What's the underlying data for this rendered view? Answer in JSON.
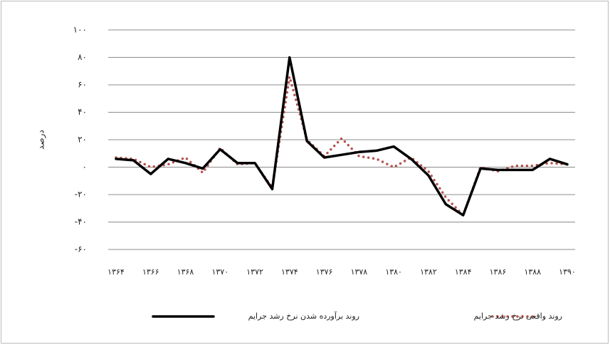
{
  "chart_data": {
    "type": "line",
    "y_label": "درصد",
    "categories": [
      "۱۳۶۴",
      null,
      "۱۳۶۶",
      null,
      "۱۳۶۸",
      null,
      "۱۳۷۰",
      null,
      "۱۳۷۲",
      null,
      "۱۳۷۴",
      null,
      "۱۳۷۶",
      null,
      "۱۳۷۸",
      null,
      "۱۳۸۰",
      null,
      "۱۳۸۲",
      null,
      "۱۳۸۴",
      null,
      "۱۳۸۶",
      null,
      "۱۳۸۸",
      null,
      "۱۳۹۰"
    ],
    "series": [
      {
        "name": "روند برآورده شدن نرخ رشد جرایم",
        "color": "#000000",
        "dash": false,
        "values": [
          6,
          5,
          -5,
          6,
          3,
          -1,
          13,
          3,
          3,
          -16,
          80,
          19,
          7,
          9,
          11,
          12,
          15,
          6,
          -6,
          -27,
          -35,
          -1,
          -2,
          -2,
          -2,
          6,
          2
        ]
      },
      {
        "name": "روند واقعی نرخ رشد جرایم",
        "color": "#b5524e",
        "dash": true,
        "values": [
          7,
          6,
          0,
          2,
          7,
          -4,
          14,
          2,
          3,
          -15,
          66,
          20,
          8,
          21,
          8,
          6,
          0,
          7,
          -3,
          -22,
          -35,
          0,
          -3,
          1,
          1,
          3,
          2
        ]
      }
    ],
    "ylim": [
      -60,
      100
    ],
    "yticks": [
      {
        "value": -60,
        "label": "-۶۰"
      },
      {
        "value": -40,
        "label": "-۴۰"
      },
      {
        "value": -20,
        "label": "-۲۰"
      },
      {
        "value": 0,
        "label": "۰"
      },
      {
        "value": 20,
        "label": "۲۰"
      },
      {
        "value": 40,
        "label": "۴۰"
      },
      {
        "value": 60,
        "label": "۶۰"
      },
      {
        "value": 80,
        "label": "۸۰"
      },
      {
        "value": 100,
        "label": "۱۰۰"
      }
    ],
    "grid": true
  }
}
